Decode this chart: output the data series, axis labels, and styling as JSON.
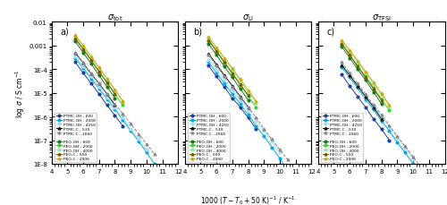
{
  "title_a": "$\\sigma_{\\mathrm{tot}}$",
  "title_b": "$\\sigma_{\\mathrm{Li}}$",
  "title_c": "$\\sigma_{\\mathrm{TFSI}}$",
  "ylabel": "log $\\sigma$ / S cm$^{-1}$",
  "xlim": [
    4,
    12
  ],
  "ylim_log": [
    1e-08,
    0.01
  ],
  "yticks_labels": [
    "1E-8",
    "1E-7",
    "1E-6",
    "1E-5",
    "1E-4",
    "0.001",
    "0.01"
  ],
  "yticks_vals": [
    1e-08,
    1e-07,
    1e-06,
    1e-05,
    0.0001,
    0.001,
    0.01
  ],
  "series": [
    {
      "label": "PTMC-OH - 600",
      "color": "#1c3f96",
      "marker": "o",
      "linestyle": "-",
      "x_a": [
        5.5,
        6.0,
        6.5,
        7.0,
        7.5,
        8.0,
        8.5
      ],
      "y_a": [
        0.0002,
        7e-05,
        2.5e-05,
        9e-06,
        3e-06,
        1.1e-06,
        4e-07
      ],
      "x_b": [
        5.5,
        6.0,
        6.5,
        7.0,
        7.5,
        8.0,
        8.5
      ],
      "y_b": [
        0.00014,
        5e-05,
        1.8e-05,
        6e-06,
        2.5e-06,
        9e-07,
        3e-07
      ],
      "x_c": [
        5.5,
        6.0,
        6.5,
        7.0,
        7.5,
        8.0,
        8.5
      ],
      "y_c": [
        6e-05,
        2e-05,
        7e-06,
        2.5e-06,
        8e-07,
        3e-07,
        1e-07
      ]
    },
    {
      "label": "PTMC-OH - 2000",
      "color": "#00aadd",
      "marker": "o",
      "linestyle": "-",
      "x_a": [
        5.5,
        6.0,
        6.5,
        7.0,
        7.5,
        8.0,
        8.5,
        9.0,
        9.5,
        10.0,
        10.5
      ],
      "y_a": [
        0.0003,
        0.00011,
        4e-05,
        1.5e-05,
        5.5e-06,
        2e-06,
        7e-07,
        2.5e-07,
        9e-08,
        3e-08,
        1e-08
      ],
      "x_b": [
        5.5,
        6.0,
        6.5,
        7.0,
        7.5,
        8.0,
        8.5,
        9.0,
        9.5,
        10.0,
        10.5
      ],
      "y_b": [
        0.0002,
        7e-05,
        2.5e-05,
        9e-06,
        3.5e-06,
        1.2e-06,
        4e-07,
        1.5e-07,
        5e-08,
        1.7e-08,
        5e-09
      ],
      "x_c": [
        5.5,
        6.0,
        6.5,
        7.0,
        7.5,
        8.0,
        8.5,
        9.0,
        9.5,
        10.0,
        10.5
      ],
      "y_c": [
        0.00012,
        4.5e-05,
        1.6e-05,
        5.5e-06,
        2e-06,
        6.5e-07,
        2.5e-07,
        8e-08,
        3e-08,
        1e-08,
        3e-09
      ]
    },
    {
      "label": "PTMC-OH - 4250",
      "color": "#aaddf5",
      "marker": "o",
      "linestyle": "-",
      "x_a": [
        5.5,
        6.0,
        6.5,
        7.0,
        7.5,
        8.0,
        8.5,
        9.0,
        9.5,
        10.0
      ],
      "y_a": [
        0.00035,
        0.00013,
        5e-05,
        1.8e-05,
        6.5e-06,
        2.5e-06,
        9e-07,
        3e-07,
        1.1e-07,
        4e-08
      ],
      "x_b": [
        5.5,
        6.0,
        6.5,
        7.0,
        7.5,
        8.0,
        8.5,
        9.0,
        9.5,
        10.0
      ],
      "y_b": [
        0.00025,
        9e-05,
        3.5e-05,
        1.3e-05,
        5e-06,
        1.8e-06,
        6.5e-07,
        2.5e-07,
        9e-08,
        3e-08
      ],
      "x_c": [
        5.5,
        6.0,
        6.5,
        7.0,
        7.5,
        8.0,
        8.5,
        9.0,
        9.5,
        10.0
      ],
      "y_c": [
        0.00015,
        5.5e-05,
        2e-05,
        7.5e-06,
        2.8e-06,
        1e-06,
        3.5e-07,
        1.3e-07,
        5e-08,
        1.5e-08
      ]
    },
    {
      "label": "PTMC-C - 530",
      "color": "#111111",
      "marker": "^",
      "linestyle": "-",
      "x_a": [
        5.5,
        6.0,
        6.5,
        7.0,
        7.5,
        8.0
      ],
      "y_a": [
        0.0005,
        0.00018,
        6.5e-05,
        2.5e-05,
        9e-06,
        3e-06
      ],
      "x_b": [
        5.5,
        6.0,
        6.5,
        7.0,
        7.5,
        8.0
      ],
      "y_b": [
        0.00045,
        0.00016,
        5.5e-05,
        2e-05,
        7e-06,
        2.5e-06
      ],
      "x_c": [
        5.5,
        6.0,
        6.5,
        7.0,
        7.5,
        8.0
      ],
      "y_c": [
        0.00015,
        5.5e-05,
        2e-05,
        7e-06,
        2.5e-06,
        8e-07
      ]
    },
    {
      "label": "PTMC-C - 2060",
      "color": "#888888",
      "marker": "^",
      "linestyle": "--",
      "x_a": [
        5.5,
        6.0,
        6.5,
        7.0,
        7.5,
        8.0,
        8.5,
        9.0,
        9.5,
        10.0,
        10.5
      ],
      "y_a": [
        0.0005,
        0.00018,
        6.5e-05,
        2.5e-05,
        9e-06,
        3.5e-06,
        1.3e-06,
        5e-07,
        1.8e-07,
        7e-08,
        2.5e-08
      ],
      "x_b": [
        5.5,
        6.0,
        6.5,
        7.0,
        7.5,
        8.0,
        8.5,
        9.0,
        9.5,
        10.0,
        10.5
      ],
      "y_b": [
        0.0004,
        0.00014,
        5e-05,
        1.8e-05,
        6.5e-06,
        2.5e-06,
        9e-07,
        3e-07,
        1.1e-07,
        4e-08,
        1.5e-08
      ],
      "x_c": [
        5.5,
        6.0,
        6.5,
        7.0,
        7.5,
        8.0,
        8.5,
        9.0,
        9.5,
        10.0,
        10.5
      ],
      "y_c": [
        0.0002,
        7e-05,
        2.5e-05,
        9e-06,
        3.2e-06,
        1.2e-06,
        4.2e-07,
        1.5e-07,
        5.5e-08,
        2e-08,
        7e-09
      ]
    },
    {
      "label": "PEO-OH - 600",
      "color": "#1a7a1a",
      "marker": "o",
      "linestyle": "-",
      "x_a": [
        5.5,
        6.0,
        6.5,
        7.0,
        7.5,
        8.0
      ],
      "y_a": [
        0.0015,
        0.0005,
        0.00017,
        5.5e-05,
        1.8e-05,
        6e-06
      ],
      "x_b": [
        5.5,
        6.0,
        6.5,
        7.0,
        7.5,
        8.0
      ],
      "y_b": [
        0.0012,
        0.0004,
        0.00013,
        4.5e-05,
        1.5e-05,
        5e-06
      ],
      "x_c": [
        5.5,
        6.0,
        6.5,
        7.0,
        7.5,
        8.0
      ],
      "y_c": [
        0.0009,
        0.0003,
        0.0001,
        3.5e-05,
        1.1e-05,
        3.5e-06
      ]
    },
    {
      "label": "PEO-OH - 2000",
      "color": "#3dcc3d",
      "marker": "o",
      "linestyle": "-",
      "x_a": [
        5.5,
        6.0,
        6.5,
        7.0,
        7.5,
        8.0,
        8.5
      ],
      "y_a": [
        0.002,
        0.0007,
        0.00024,
        8e-05,
        2.7e-05,
        9e-06,
        3e-06
      ],
      "x_b": [
        5.5,
        6.0,
        6.5,
        7.0,
        7.5,
        8.0,
        8.5
      ],
      "y_b": [
        0.0017,
        0.00057,
        0.00019,
        6.5e-05,
        2.2e-05,
        7.5e-06,
        2.5e-06
      ],
      "x_c": [
        5.5,
        6.0,
        6.5,
        7.0,
        7.5,
        8.0,
        8.5
      ],
      "y_c": [
        0.0012,
        0.00041,
        0.00014,
        5e-05,
        1.7e-05,
        5.5e-06,
        1.8e-06
      ]
    },
    {
      "label": "PEO-OH - 4000",
      "color": "#9de89d",
      "marker": "o",
      "linestyle": "-",
      "x_a": [
        5.5,
        6.0,
        6.5,
        7.0,
        7.5,
        8.0,
        8.5
      ],
      "y_a": [
        0.0025,
        0.0009,
        0.00032,
        0.00011,
        3.8e-05,
        1.3e-05,
        4.5e-06
      ],
      "x_b": [
        5.5,
        6.0,
        6.5,
        7.0,
        7.5,
        8.0,
        8.5
      ],
      "y_b": [
        0.0021,
        0.00075,
        0.00027,
        9.5e-05,
        3.2e-05,
        1.1e-05,
        3.8e-06
      ],
      "x_c": [
        5.5,
        6.0,
        6.5,
        7.0,
        7.5,
        8.0,
        8.5
      ],
      "y_c": [
        0.0015,
        0.00055,
        0.0002,
        7e-05,
        2.4e-05,
        8e-06,
        2.7e-06
      ]
    },
    {
      "label": "PEO-C - 500",
      "color": "#7a5500",
      "marker": "^",
      "linestyle": "-",
      "x_a": [
        5.5,
        6.0,
        6.5,
        7.0,
        7.5,
        8.0
      ],
      "y_a": [
        0.002,
        0.0007,
        0.00024,
        8e-05,
        2.7e-05,
        9e-06
      ],
      "x_b": [
        5.5,
        6.0,
        6.5,
        7.0,
        7.5,
        8.0
      ],
      "y_b": [
        0.0017,
        0.00058,
        0.0002,
        6.8e-05,
        2.3e-05,
        8e-06
      ],
      "x_c": [
        5.5,
        6.0,
        6.5,
        7.0,
        7.5,
        8.0
      ],
      "y_c": [
        0.0012,
        0.0004,
        0.00013,
        4.5e-05,
        1.5e-05,
        5e-06
      ]
    },
    {
      "label": "PEO-C - 2000",
      "color": "#ccaa00",
      "marker": "^",
      "linestyle": "-",
      "x_a": [
        5.5,
        6.0,
        6.5,
        7.0,
        7.5,
        8.0,
        8.5
      ],
      "y_a": [
        0.0028,
        0.001,
        0.00035,
        0.00012,
        4e-05,
        1.4e-05,
        4.5e-06
      ],
      "x_b": [
        5.5,
        6.0,
        6.5,
        7.0,
        7.5,
        8.0,
        8.5
      ],
      "y_b": [
        0.0023,
        0.00085,
        0.0003,
        0.00011,
        3.8e-05,
        1.3e-05,
        4.5e-06
      ],
      "x_c": [
        5.5,
        6.0,
        6.5,
        7.0,
        7.5,
        8.0,
        8.5
      ],
      "y_c": [
        0.0017,
        0.00065,
        0.00023,
        8e-05,
        2.8e-05,
        9.5e-06,
        3.2e-06
      ]
    }
  ]
}
